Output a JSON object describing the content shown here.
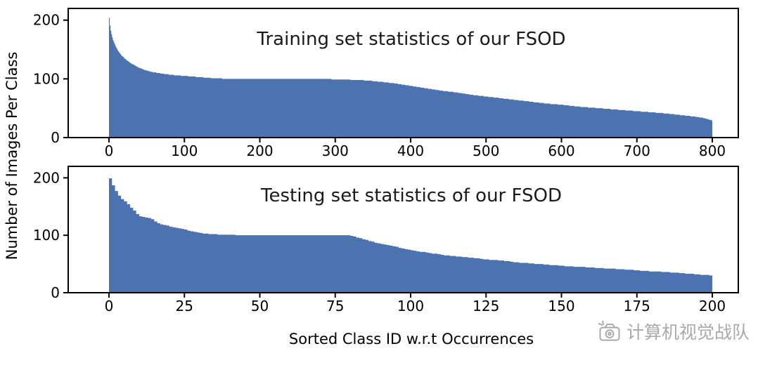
{
  "figure": {
    "ylabel": "Number of Images Per Class",
    "xlabel": "Sorted Class ID w.r.t Occurrences"
  },
  "watermark": {
    "text": "计算机视觉战队",
    "icon": "camera-icon",
    "color": "#a9a9a9"
  },
  "chart_data": [
    {
      "type": "area",
      "title": "Training set statistics of our FSOD",
      "xlabel": "",
      "ylabel": "Number of Images Per Class",
      "xlim": [
        0,
        800
      ],
      "ylim": [
        0,
        220
      ],
      "xticks": [
        0,
        100,
        200,
        300,
        400,
        500,
        600,
        700,
        800
      ],
      "yticks": [
        0,
        100,
        200
      ],
      "grid": false,
      "legend": "none",
      "color": "#4c72b0",
      "points": [
        [
          0,
          212
        ],
        [
          1,
          196
        ],
        [
          2,
          186
        ],
        [
          3,
          178
        ],
        [
          5,
          168
        ],
        [
          8,
          158
        ],
        [
          12,
          148
        ],
        [
          16,
          141
        ],
        [
          20,
          136
        ],
        [
          25,
          130
        ],
        [
          30,
          126
        ],
        [
          40,
          119
        ],
        [
          50,
          114
        ],
        [
          60,
          111
        ],
        [
          75,
          108
        ],
        [
          90,
          106
        ],
        [
          100,
          105
        ],
        [
          120,
          103
        ],
        [
          140,
          101
        ],
        [
          160,
          100
        ],
        [
          200,
          100
        ],
        [
          240,
          100
        ],
        [
          280,
          100
        ],
        [
          310,
          99
        ],
        [
          330,
          98
        ],
        [
          345,
          97
        ],
        [
          360,
          95
        ],
        [
          375,
          93
        ],
        [
          390,
          90
        ],
        [
          400,
          88
        ],
        [
          420,
          84
        ],
        [
          440,
          80
        ],
        [
          460,
          77
        ],
        [
          480,
          73
        ],
        [
          500,
          70
        ],
        [
          520,
          67
        ],
        [
          540,
          64
        ],
        [
          560,
          61
        ],
        [
          580,
          58
        ],
        [
          600,
          56
        ],
        [
          620,
          53
        ],
        [
          640,
          51
        ],
        [
          660,
          49
        ],
        [
          680,
          47
        ],
        [
          700,
          45
        ],
        [
          720,
          43
        ],
        [
          740,
          41
        ],
        [
          760,
          38
        ],
        [
          775,
          36
        ],
        [
          790,
          33
        ],
        [
          795,
          31
        ],
        [
          800,
          29
        ]
      ]
    },
    {
      "type": "area",
      "title": "Testing set statistics of our FSOD",
      "xlabel": "Sorted Class ID w.r.t Occurrences",
      "ylabel": "",
      "xlim": [
        0,
        200
      ],
      "ylim": [
        0,
        220
      ],
      "xticks": [
        0,
        25,
        50,
        75,
        100,
        125,
        150,
        175,
        200
      ],
      "yticks": [
        0,
        100,
        200
      ],
      "grid": false,
      "legend": "none",
      "color": "#4c72b0",
      "points": [
        [
          0,
          206
        ],
        [
          1,
          192
        ],
        [
          2,
          182
        ],
        [
          3,
          172
        ],
        [
          4,
          165
        ],
        [
          5,
          160
        ],
        [
          6,
          158
        ],
        [
          7,
          150
        ],
        [
          8,
          145
        ],
        [
          9,
          140
        ],
        [
          10,
          134
        ],
        [
          12,
          131
        ],
        [
          14,
          130
        ],
        [
          15,
          125
        ],
        [
          16,
          122
        ],
        [
          18,
          118
        ],
        [
          20,
          116
        ],
        [
          22,
          113
        ],
        [
          24,
          111
        ],
        [
          26,
          109
        ],
        [
          28,
          106
        ],
        [
          30,
          104
        ],
        [
          34,
          102
        ],
        [
          38,
          101
        ],
        [
          45,
          100
        ],
        [
          55,
          100
        ],
        [
          65,
          100
        ],
        [
          75,
          100
        ],
        [
          80,
          100
        ],
        [
          82,
          97
        ],
        [
          84,
          94
        ],
        [
          86,
          91
        ],
        [
          88,
          88
        ],
        [
          90,
          85
        ],
        [
          93,
          82
        ],
        [
          96,
          79
        ],
        [
          100,
          74
        ],
        [
          104,
          71
        ],
        [
          108,
          68
        ],
        [
          112,
          65
        ],
        [
          116,
          63
        ],
        [
          120,
          61
        ],
        [
          125,
          58
        ],
        [
          130,
          56
        ],
        [
          135,
          53
        ],
        [
          140,
          51
        ],
        [
          145,
          49
        ],
        [
          150,
          47
        ],
        [
          155,
          45
        ],
        [
          160,
          44
        ],
        [
          165,
          42
        ],
        [
          170,
          41
        ],
        [
          175,
          39
        ],
        [
          180,
          37
        ],
        [
          185,
          36
        ],
        [
          190,
          34
        ],
        [
          195,
          32
        ],
        [
          200,
          30
        ]
      ]
    }
  ]
}
